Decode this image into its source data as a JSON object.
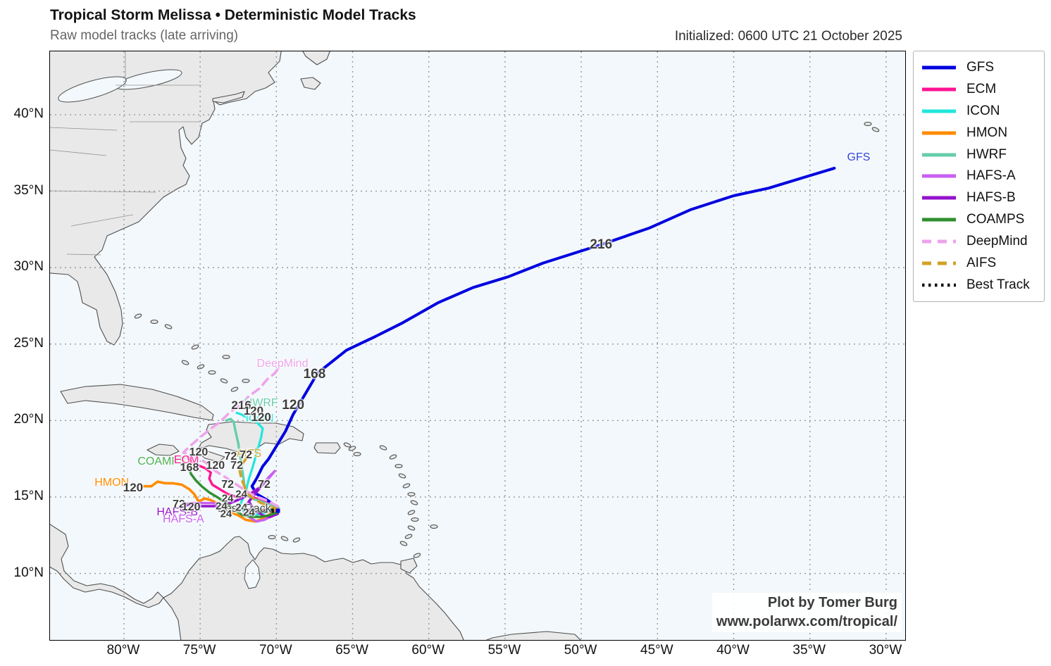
{
  "header": {
    "title": "Tropical Storm Melissa • Deterministic Model Tracks",
    "subtitle": "Raw model tracks (late arriving)",
    "initialized": "Initialized: 0600 UTC 21 October 2025"
  },
  "credit": {
    "line1": "Plot by Tomer Burg",
    "line2": "www.polarwx.com/tropical/"
  },
  "axes": {
    "lon_ticks": [
      {
        "label": "80°W",
        "lon": -80
      },
      {
        "label": "75°W",
        "lon": -75
      },
      {
        "label": "70°W",
        "lon": -70
      },
      {
        "label": "65°W",
        "lon": -65
      },
      {
        "label": "60°W",
        "lon": -60
      },
      {
        "label": "55°W",
        "lon": -55
      },
      {
        "label": "50°W",
        "lon": -50
      },
      {
        "label": "45°W",
        "lon": -45
      },
      {
        "label": "40°W",
        "lon": -40
      },
      {
        "label": "35°W",
        "lon": -35
      },
      {
        "label": "30°W",
        "lon": -30
      }
    ],
    "lat_ticks": [
      {
        "label": "40°N",
        "lat": 40
      },
      {
        "label": "35°N",
        "lat": 35
      },
      {
        "label": "30°N",
        "lat": 30
      },
      {
        "label": "25°N",
        "lat": 25
      },
      {
        "label": "20°N",
        "lat": 20
      },
      {
        "label": "15°N",
        "lat": 15
      },
      {
        "label": "10°N",
        "lat": 10
      }
    ]
  },
  "legend": {
    "items": [
      {
        "label": "GFS",
        "color": "#0000e0",
        "style": "solid"
      },
      {
        "label": "ECM",
        "color": "#ff1493",
        "style": "solid"
      },
      {
        "label": "ICON",
        "color": "#21e6dc",
        "style": "solid"
      },
      {
        "label": "HMON",
        "color": "#ff8c00",
        "style": "solid"
      },
      {
        "label": "HWRF",
        "color": "#66cdaa",
        "style": "solid"
      },
      {
        "label": "HAFS-A",
        "color": "#c95ff0",
        "style": "solid"
      },
      {
        "label": "HAFS-B",
        "color": "#9412cc",
        "style": "solid"
      },
      {
        "label": "COAMPS",
        "color": "#2f8f2f",
        "style": "solid"
      },
      {
        "label": "DeepMind",
        "color": "#efa3ec",
        "style": "dashed"
      },
      {
        "label": "AIFS",
        "color": "#d2a225",
        "style": "dashed"
      },
      {
        "label": "Best Track",
        "color": "#111111",
        "style": "dotted"
      }
    ]
  },
  "chart_data": {
    "type": "line",
    "subtype": "hurricane-model-track-map",
    "extent": {
      "lon_min": -84.85,
      "lon_max": -28.75,
      "lat_min": 5.65,
      "lat_max": 44.14
    },
    "grid": "dotted",
    "tracks": [
      {
        "name": "GFS",
        "color": "#0000e0",
        "style": "solid",
        "width": 4,
        "points": [
          [
            -69.9,
            14.3
          ],
          [
            -70.6,
            14.8
          ],
          [
            -71.3,
            15.2
          ],
          [
            -71.6,
            15.7
          ],
          [
            -71.3,
            16.2
          ],
          [
            -70.9,
            17.0
          ],
          [
            -70.5,
            17.5
          ],
          [
            -69.4,
            19.3
          ],
          [
            -68.9,
            20.4
          ],
          [
            -67.3,
            23.1
          ],
          [
            -65.4,
            24.6
          ],
          [
            -63.5,
            25.5
          ],
          [
            -61.7,
            26.4
          ],
          [
            -59.4,
            27.7
          ],
          [
            -57.1,
            28.7
          ],
          [
            -54.8,
            29.4
          ],
          [
            -52.5,
            30.3
          ],
          [
            -48.7,
            31.5
          ],
          [
            -45.5,
            32.6
          ],
          [
            -42.8,
            33.8
          ],
          [
            -40.0,
            34.7
          ],
          [
            -37.7,
            35.2
          ],
          [
            -35.4,
            35.9
          ],
          [
            -33.4,
            36.5
          ]
        ]
      },
      {
        "name": "ECM",
        "color": "#ff1493",
        "style": "solid",
        "width": 3.4,
        "points": [
          [
            -69.9,
            14.3
          ],
          [
            -70.6,
            14.6
          ],
          [
            -71.3,
            14.9
          ],
          [
            -72.0,
            15.1
          ],
          [
            -72.6,
            15.0
          ],
          [
            -73.2,
            15.2
          ],
          [
            -73.7,
            15.5
          ],
          [
            -74.2,
            15.8
          ],
          [
            -74.4,
            16.2
          ],
          [
            -74.3,
            16.6
          ],
          [
            -74.7,
            16.9
          ],
          [
            -75.2,
            17.1
          ],
          [
            -75.7,
            17.4
          ],
          [
            -75.8,
            17.6
          ]
        ]
      },
      {
        "name": "ICON",
        "color": "#21e6dc",
        "style": "solid",
        "width": 3.2,
        "points": [
          [
            -69.9,
            14.3
          ],
          [
            -70.5,
            14.1
          ],
          [
            -71.0,
            13.9
          ],
          [
            -71.6,
            13.8
          ],
          [
            -72.1,
            14.0
          ],
          [
            -72.4,
            14.4
          ],
          [
            -72.2,
            14.9
          ],
          [
            -72.0,
            15.4
          ],
          [
            -71.8,
            16.2
          ],
          [
            -71.6,
            16.8
          ],
          [
            -71.4,
            17.5
          ],
          [
            -71.2,
            18.2
          ],
          [
            -71.0,
            18.9
          ],
          [
            -70.9,
            19.5
          ],
          [
            -71.3,
            19.9
          ],
          [
            -71.8,
            20.1
          ],
          [
            -72.3,
            20.4
          ],
          [
            -72.6,
            20.5
          ]
        ]
      },
      {
        "name": "HMON",
        "color": "#ff8c00",
        "style": "solid",
        "width": 3.6,
        "points": [
          [
            -69.9,
            14.2
          ],
          [
            -70.4,
            13.9
          ],
          [
            -70.8,
            13.6
          ],
          [
            -71.4,
            13.4
          ],
          [
            -72.0,
            13.5
          ],
          [
            -72.5,
            13.8
          ],
          [
            -73.2,
            14.1
          ],
          [
            -73.7,
            14.5
          ],
          [
            -74.3,
            14.8
          ],
          [
            -74.7,
            14.9
          ],
          [
            -75.1,
            14.7
          ],
          [
            -75.4,
            15.2
          ],
          [
            -75.7,
            15.5
          ],
          [
            -76.2,
            15.8
          ],
          [
            -76.8,
            15.9
          ],
          [
            -77.3,
            15.9
          ],
          [
            -77.8,
            16.0
          ],
          [
            -78.2,
            15.7
          ],
          [
            -78.7,
            15.7
          ]
        ]
      },
      {
        "name": "HWRF",
        "color": "#66cdaa",
        "style": "solid",
        "width": 3.4,
        "points": [
          [
            -69.9,
            14.3
          ],
          [
            -70.5,
            14.5
          ],
          [
            -71.0,
            14.7
          ],
          [
            -71.6,
            14.9
          ],
          [
            -72.0,
            15.2
          ],
          [
            -72.1,
            15.8
          ],
          [
            -72.2,
            16.5
          ],
          [
            -72.3,
            17.2
          ],
          [
            -72.4,
            17.8
          ],
          [
            -72.5,
            18.5
          ],
          [
            -72.7,
            19.4
          ],
          [
            -72.8,
            19.9
          ],
          [
            -73.0,
            20.1
          ],
          [
            -73.3,
            20.0
          ]
        ]
      },
      {
        "name": "HAFS-A",
        "color": "#c95ff0",
        "style": "solid",
        "width": 3.4,
        "points": [
          [
            -69.9,
            14.1
          ],
          [
            -70.4,
            13.7
          ],
          [
            -70.8,
            13.5
          ],
          [
            -71.3,
            13.4
          ],
          [
            -71.8,
            13.7
          ],
          [
            -72.1,
            14.0
          ],
          [
            -71.9,
            14.6
          ],
          [
            -71.4,
            15.2
          ],
          [
            -70.9,
            15.8
          ],
          [
            -70.5,
            16.3
          ],
          [
            -70.1,
            16.7
          ],
          [
            -70.6,
            16.1
          ],
          [
            -71.0,
            15.7
          ],
          [
            -71.6,
            15.3
          ],
          [
            -72.1,
            15.0
          ],
          [
            -72.8,
            14.7
          ],
          [
            -73.5,
            14.5
          ],
          [
            -74.2,
            14.6
          ],
          [
            -74.9,
            14.6
          ],
          [
            -75.6,
            14.6
          ],
          [
            -76.1,
            14.5
          ]
        ]
      },
      {
        "name": "HAFS-B",
        "color": "#9412cc",
        "style": "solid",
        "width": 3.4,
        "points": [
          [
            -69.9,
            13.9
          ],
          [
            -70.4,
            13.7
          ],
          [
            -70.9,
            13.8
          ],
          [
            -71.5,
            14.2
          ],
          [
            -71.8,
            14.7
          ],
          [
            -71.4,
            15.2
          ],
          [
            -71.0,
            15.7
          ],
          [
            -70.7,
            16.0
          ],
          [
            -71.1,
            15.6
          ],
          [
            -71.7,
            15.2
          ],
          [
            -72.3,
            14.9
          ],
          [
            -73.0,
            14.6
          ],
          [
            -73.7,
            14.4
          ],
          [
            -74.4,
            14.4
          ],
          [
            -75.1,
            14.4
          ],
          [
            -75.7,
            14.5
          ],
          [
            -76.1,
            14.4
          ]
        ]
      },
      {
        "name": "COAMPS",
        "color": "#2f8f2f",
        "style": "solid",
        "width": 3.4,
        "points": [
          [
            -69.9,
            14.0
          ],
          [
            -70.5,
            13.8
          ],
          [
            -71.0,
            13.7
          ],
          [
            -71.6,
            13.7
          ],
          [
            -72.2,
            13.8
          ],
          [
            -72.8,
            14.2
          ],
          [
            -73.3,
            14.6
          ],
          [
            -73.9,
            15.0
          ],
          [
            -74.4,
            15.3
          ],
          [
            -74.9,
            15.7
          ],
          [
            -75.3,
            16.1
          ],
          [
            -75.6,
            16.5
          ],
          [
            -75.7,
            16.8
          ]
        ]
      },
      {
        "name": "DeepMind",
        "color": "#efa3ec",
        "style": "dashed",
        "width": 3.6,
        "points": [
          [
            -69.9,
            14.4
          ],
          [
            -70.7,
            14.8
          ],
          [
            -71.5,
            15.1
          ],
          [
            -72.3,
            15.6
          ],
          [
            -73.2,
            16.2
          ],
          [
            -74.0,
            16.7
          ],
          [
            -74.7,
            17.3
          ],
          [
            -75.5,
            17.7
          ],
          [
            -76.1,
            17.9
          ],
          [
            -75.7,
            18.3
          ],
          [
            -75.0,
            18.9
          ],
          [
            -74.4,
            19.4
          ],
          [
            -73.7,
            19.9
          ],
          [
            -73.1,
            20.5
          ],
          [
            -72.4,
            21.0
          ],
          [
            -71.8,
            21.6
          ],
          [
            -71.1,
            22.1
          ],
          [
            -70.6,
            22.7
          ],
          [
            -70.1,
            23.1
          ],
          [
            -69.8,
            23.5
          ]
        ]
      },
      {
        "name": "AIFS",
        "color": "#d2a225",
        "style": "dashed",
        "width": 3.6,
        "points": [
          [
            -69.9,
            14.2
          ],
          [
            -70.5,
            14.4
          ],
          [
            -71.0,
            14.6
          ],
          [
            -71.5,
            14.9
          ],
          [
            -71.9,
            15.2
          ],
          [
            -72.1,
            15.7
          ],
          [
            -72.3,
            16.2
          ],
          [
            -72.4,
            16.7
          ],
          [
            -72.2,
            17.2
          ],
          [
            -72.0,
            17.5
          ]
        ]
      }
    ],
    "best_track": {
      "name": "Best Track",
      "color": "#111111",
      "marker": "square",
      "end_color": "#0000e0",
      "points": [
        [
          -71.8,
          14.1
        ],
        [
          -71.4,
          14.1
        ],
        [
          -71.0,
          14.1
        ],
        [
          -70.7,
          14.1
        ],
        [
          -70.3,
          14.1
        ],
        [
          -69.9,
          14.1
        ]
      ]
    },
    "model_labels": [
      {
        "text": "GFS",
        "lon": -31.8,
        "lat": 37.2,
        "color": "#2b43e0"
      },
      {
        "text": "DeepMind",
        "lon": -69.6,
        "lat": 23.7,
        "color": "#efa3ec"
      },
      {
        "text": "HWRF",
        "lon": -71.0,
        "lat": 21.1,
        "color": "#66cdaa"
      },
      {
        "text": "ICON",
        "lon": -71.1,
        "lat": 20.1,
        "color": "#21e6dc"
      },
      {
        "text": "AIFS",
        "lon": -71.8,
        "lat": 17.8,
        "color": "#d2a225"
      },
      {
        "text": "COAMPS",
        "lon": -77.5,
        "lat": 17.3,
        "color": "#4caf50"
      },
      {
        "text": "ECM",
        "lon": -75.9,
        "lat": 17.4,
        "color": "#ff1493"
      },
      {
        "text": "HMON",
        "lon": -80.8,
        "lat": 15.9,
        "color": "#ff8c00"
      },
      {
        "text": "HAFS-B",
        "lon": -76.5,
        "lat": 14.0,
        "color": "#9412cc"
      },
      {
        "text": "HAFS-A",
        "lon": -76.1,
        "lat": 13.5,
        "color": "#c95ff0"
      },
      {
        "text": "Best Track",
        "lon": -72.1,
        "lat": 14.2,
        "color": "#3d3d3d"
      }
    ],
    "hour_labels": [
      {
        "text": "120",
        "lon": -68.9,
        "lat": 21.0,
        "size": 19
      },
      {
        "text": "168",
        "lon": -67.5,
        "lat": 23.0,
        "size": 19
      },
      {
        "text": "216",
        "lon": -48.7,
        "lat": 31.5,
        "size": 19
      },
      {
        "text": "216",
        "lon": -72.3,
        "lat": 21.0,
        "size": 17
      },
      {
        "text": "120",
        "lon": -71.5,
        "lat": 20.6,
        "size": 17
      },
      {
        "text": "120",
        "lon": -71.0,
        "lat": 20.2,
        "size": 17
      },
      {
        "text": "120",
        "lon": -75.1,
        "lat": 17.9,
        "size": 16
      },
      {
        "text": "168",
        "lon": -75.7,
        "lat": 16.9,
        "size": 16
      },
      {
        "text": "120",
        "lon": -74.0,
        "lat": 17.0,
        "size": 16
      },
      {
        "text": "72",
        "lon": -72.6,
        "lat": 17.0,
        "size": 16
      },
      {
        "text": "72",
        "lon": -73.0,
        "lat": 17.6,
        "size": 16
      },
      {
        "text": "72",
        "lon": -72.0,
        "lat": 17.7,
        "size": 16
      },
      {
        "text": "120",
        "lon": -79.4,
        "lat": 15.6,
        "size": 17
      },
      {
        "text": "72",
        "lon": -76.4,
        "lat": 14.5,
        "size": 16
      },
      {
        "text": "120",
        "lon": -75.6,
        "lat": 14.3,
        "size": 16
      },
      {
        "text": "72",
        "lon": -70.8,
        "lat": 15.8,
        "size": 16
      },
      {
        "text": "72",
        "lon": -73.2,
        "lat": 15.8,
        "size": 16
      },
      {
        "text": "24",
        "lon": -72.3,
        "lat": 15.2,
        "size": 15
      },
      {
        "text": "24",
        "lon": -73.2,
        "lat": 14.9,
        "size": 15
      },
      {
        "text": "24",
        "lon": -73.6,
        "lat": 14.4,
        "size": 15
      },
      {
        "text": "24",
        "lon": -72.3,
        "lat": 14.3,
        "size": 15
      },
      {
        "text": "24",
        "lon": -71.8,
        "lat": 14.0,
        "size": 15
      },
      {
        "text": "24",
        "lon": -73.3,
        "lat": 13.9,
        "size": 15
      }
    ]
  }
}
